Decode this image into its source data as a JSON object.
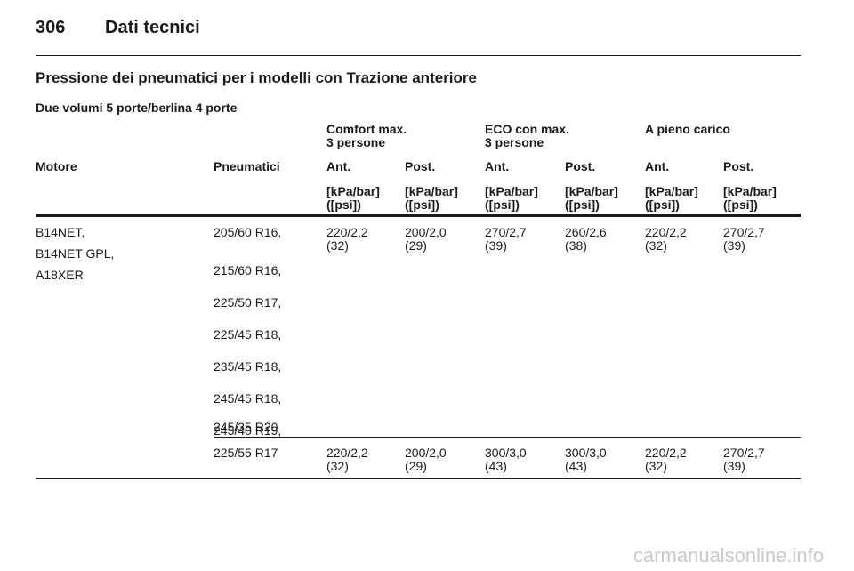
{
  "header": {
    "page_number": "306",
    "chapter": "Dati tecnici"
  },
  "section_title": "Pressione dei pneumatici per i modelli con Trazione anteriore",
  "subsection_title": "Due volumi 5 porte/berlina 4 porte",
  "table": {
    "groups": [
      "Comfort max.\n3 persone",
      "ECO con max.\n3 persone",
      "A pieno carico"
    ],
    "columns": [
      "Motore",
      "Pneumatici",
      "Ant.",
      "Post.",
      "Ant.",
      "Post.",
      "Ant.",
      "Post."
    ],
    "unit": "[kPa/bar]\n([psi])",
    "engines": [
      "B14NET,",
      "B14NET GPL,",
      "A18XER"
    ],
    "tires_row1": [
      "205/60 R16,",
      "215/60 R16,",
      "225/50 R17,",
      "225/45 R18,",
      "235/45 R18,",
      "245/45 R18,",
      "245/40 R19,",
      "245/35 R20"
    ],
    "pressures_row1": [
      "220/2,2\n(32)",
      "200/2,0\n(29)",
      "270/2,7\n(39)",
      "260/2,6\n(38)",
      "220/2,2\n(32)",
      "270/2,7\n(39)"
    ],
    "tire_row2": "225/55 R17",
    "pressures_row2": [
      "220/2,2\n(32)",
      "200/2,0\n(29)",
      "300/3,0\n(43)",
      "300/3,0\n(43)",
      "220/2,2\n(32)",
      "270/2,7\n(39)"
    ]
  },
  "watermark": "carmanualsonline.info"
}
